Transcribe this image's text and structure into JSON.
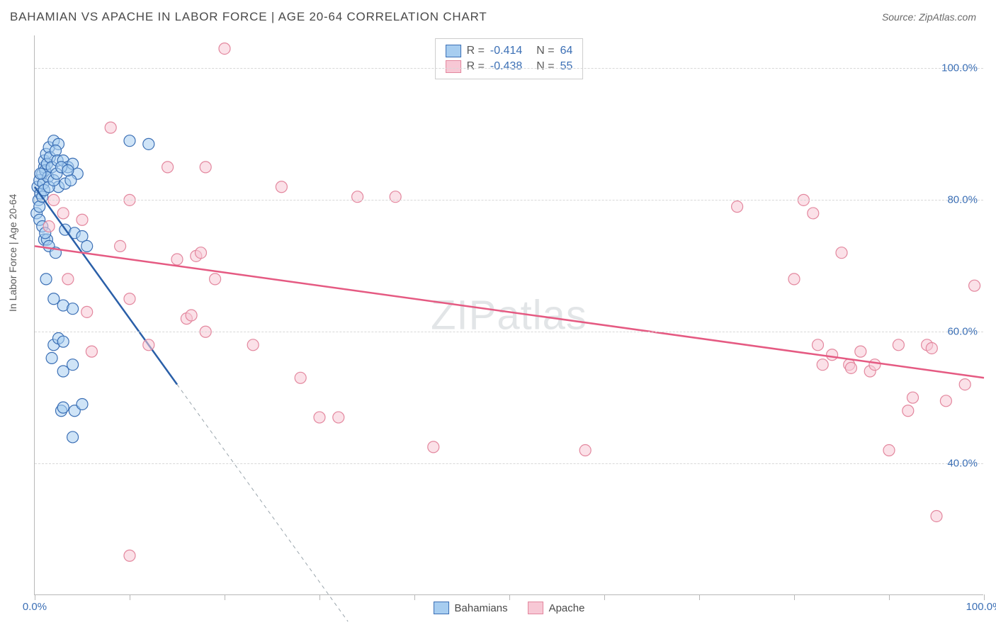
{
  "header": {
    "title": "BAHAMIAN VS APACHE IN LABOR FORCE | AGE 20-64 CORRELATION CHART",
    "source": "Source: ZipAtlas.com"
  },
  "chart": {
    "type": "scatter",
    "watermark": "ZIPatlas",
    "ylabel": "In Labor Force | Age 20-64",
    "xlim": [
      0,
      100
    ],
    "ylim": [
      20,
      105
    ],
    "yticks": [
      40,
      60,
      80,
      100
    ],
    "ytick_labels": [
      "40.0%",
      "60.0%",
      "80.0%",
      "100.0%"
    ],
    "xtick_positions": [
      0,
      10,
      20,
      30,
      40,
      50,
      60,
      70,
      80,
      90,
      100
    ],
    "xtick_labels": {
      "0": "0.0%",
      "100": "100.0%"
    },
    "grid_color": "#d8d8d8",
    "axis_color": "#b8b8b8",
    "background_color": "#ffffff",
    "point_radius": 8,
    "point_opacity": 0.55,
    "series": [
      {
        "name": "Bahamians",
        "fill_color": "#a7cdf0",
        "stroke_color": "#3b6fb5",
        "line_color": "#2a5fa8",
        "r_value": "-0.414",
        "n_value": "64",
        "trend": {
          "x1": 0,
          "y1": 82,
          "x2": 15,
          "y2": 52,
          "dash_x2": 33,
          "dash_y2": 16
        },
        "points": [
          [
            0.3,
            82
          ],
          [
            0.5,
            83
          ],
          [
            0.8,
            84
          ],
          [
            1,
            85
          ],
          [
            1,
            86
          ],
          [
            1.2,
            87
          ],
          [
            1.5,
            88
          ],
          [
            2,
            89
          ],
          [
            2.5,
            88.5
          ],
          [
            0.4,
            80
          ],
          [
            0.6,
            81
          ],
          [
            0.9,
            82.5
          ],
          [
            1.1,
            84.5
          ],
          [
            1.3,
            85.5
          ],
          [
            1.6,
            86.5
          ],
          [
            2.2,
            87.5
          ],
          [
            0.2,
            78
          ],
          [
            0.5,
            79
          ],
          [
            0.8,
            80.5
          ],
          [
            1,
            81.5
          ],
          [
            1.4,
            83.5
          ],
          [
            1.8,
            85
          ],
          [
            2.4,
            86
          ],
          [
            3,
            86
          ],
          [
            3.5,
            85
          ],
          [
            4,
            85.5
          ],
          [
            4.5,
            84
          ],
          [
            1,
            74
          ],
          [
            1.3,
            74
          ],
          [
            1.5,
            73
          ],
          [
            2.2,
            72
          ],
          [
            3.2,
            75.5
          ],
          [
            4.2,
            75
          ],
          [
            5,
            74.5
          ],
          [
            5.5,
            73
          ],
          [
            1.2,
            68
          ],
          [
            2,
            65
          ],
          [
            3,
            64
          ],
          [
            4,
            63.5
          ],
          [
            2,
            58
          ],
          [
            2.5,
            59
          ],
          [
            3,
            58.5
          ],
          [
            1.8,
            56
          ],
          [
            3,
            54
          ],
          [
            4,
            55
          ],
          [
            10,
            89
          ],
          [
            12,
            88.5
          ],
          [
            2.8,
            48
          ],
          [
            3,
            48.5
          ],
          [
            4.2,
            48
          ],
          [
            5,
            49
          ],
          [
            4,
            44
          ],
          [
            2.5,
            82
          ],
          [
            3.2,
            82.5
          ],
          [
            3.8,
            83
          ],
          [
            0.5,
            77
          ],
          [
            0.8,
            76
          ],
          [
            1.1,
            75
          ],
          [
            1.5,
            82
          ],
          [
            2,
            83
          ],
          [
            2.3,
            84
          ],
          [
            2.8,
            85
          ],
          [
            3.5,
            84.5
          ],
          [
            0.6,
            84
          ]
        ]
      },
      {
        "name": "Apache",
        "fill_color": "#f7c8d5",
        "stroke_color": "#e3879e",
        "line_color": "#e55a82",
        "r_value": "-0.438",
        "n_value": "55",
        "trend": {
          "x1": 0,
          "y1": 73,
          "x2": 100,
          "y2": 53
        },
        "points": [
          [
            20,
            103
          ],
          [
            8,
            91
          ],
          [
            14,
            85
          ],
          [
            18,
            85
          ],
          [
            26,
            82
          ],
          [
            34,
            80.5
          ],
          [
            38,
            80.5
          ],
          [
            10,
            80
          ],
          [
            2,
            80
          ],
          [
            3,
            78
          ],
          [
            5,
            77
          ],
          [
            1.5,
            76
          ],
          [
            9,
            73
          ],
          [
            15,
            71
          ],
          [
            17,
            71.5
          ],
          [
            17.5,
            72
          ],
          [
            19,
            68
          ],
          [
            10,
            65
          ],
          [
            16,
            62
          ],
          [
            16.5,
            62.5
          ],
          [
            18,
            60
          ],
          [
            23,
            58
          ],
          [
            12,
            58
          ],
          [
            6,
            57
          ],
          [
            28,
            53
          ],
          [
            30,
            47
          ],
          [
            32,
            47
          ],
          [
            42,
            42.5
          ],
          [
            58,
            42
          ],
          [
            10,
            26
          ],
          [
            74,
            79
          ],
          [
            80,
            68
          ],
          [
            81,
            80
          ],
          [
            82,
            78
          ],
          [
            82.5,
            58
          ],
          [
            83,
            55
          ],
          [
            84,
            56.5
          ],
          [
            85,
            72
          ],
          [
            85.8,
            55
          ],
          [
            86,
            54.5
          ],
          [
            87,
            57
          ],
          [
            88,
            54
          ],
          [
            88.5,
            55
          ],
          [
            90,
            42
          ],
          [
            91,
            58
          ],
          [
            92,
            48
          ],
          [
            92.5,
            50
          ],
          [
            94,
            58
          ],
          [
            94.5,
            57.5
          ],
          [
            95,
            32
          ],
          [
            96,
            49.5
          ],
          [
            98,
            52
          ],
          [
            99,
            67
          ],
          [
            3.5,
            68
          ],
          [
            5.5,
            63
          ]
        ]
      }
    ],
    "legend_bottom": [
      {
        "label": "Bahamians",
        "fill": "#a7cdf0",
        "stroke": "#3b6fb5"
      },
      {
        "label": "Apache",
        "fill": "#f7c8d5",
        "stroke": "#e3879e"
      }
    ]
  }
}
